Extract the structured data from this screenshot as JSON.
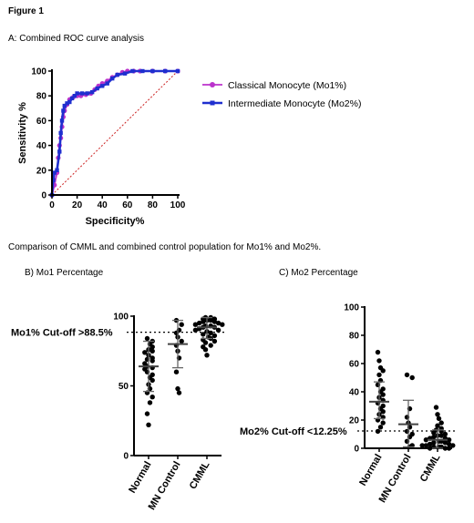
{
  "figure_title": "Figure 1",
  "panel_a_title": "A: Combined ROC curve analysis",
  "comparison_text": "Comparison of CMML and combined control population for Mo1% and Mo2%.",
  "panel_b_title": "B) Mo1 Percentage",
  "panel_c_title": "C) Mo2 Percentage",
  "colors": {
    "mo1": "#bb33cc",
    "mo2": "#1f2fcf",
    "reference": "#cc2222",
    "points": "#000000"
  },
  "chart_data": [
    {
      "type": "line",
      "title": "",
      "xlabel": "Specificity%",
      "ylabel": "Sensitivity %",
      "xlim": [
        0,
        100
      ],
      "ylim": [
        0,
        100
      ],
      "x_ticks": [
        "0",
        "20",
        "40",
        "60",
        "80",
        "100"
      ],
      "y_ticks": [
        "0",
        "20",
        "40",
        "60",
        "80",
        "100"
      ],
      "legend_position": "right",
      "series": [
        {
          "name": "Classical Monocyte (Mo1%)",
          "marker": "circle",
          "x": [
            0,
            2,
            4,
            5,
            6,
            7,
            8,
            9,
            10,
            12,
            14,
            17,
            20,
            23,
            27,
            31,
            34,
            37,
            40,
            44,
            48,
            52,
            56,
            60,
            65,
            70,
            80,
            90,
            100
          ],
          "y": [
            0,
            8,
            18,
            30,
            40,
            46,
            55,
            63,
            68,
            73,
            77,
            79,
            80,
            80,
            81,
            82,
            85,
            88,
            90,
            92,
            95,
            97,
            99,
            100,
            100,
            100,
            100,
            100,
            100
          ]
        },
        {
          "name": "Intermediate Monocyte (Mo2%)",
          "marker": "square",
          "x": [
            0,
            1,
            2,
            4,
            6,
            7,
            8,
            9,
            10,
            12,
            14,
            16,
            18,
            20,
            24,
            28,
            32,
            36,
            40,
            44,
            48,
            52,
            58,
            64,
            72,
            80,
            90,
            100
          ],
          "y": [
            0,
            12,
            18,
            20,
            35,
            50,
            60,
            68,
            72,
            74,
            75,
            78,
            80,
            82,
            82,
            82,
            83,
            86,
            88,
            90,
            94,
            97,
            98,
            100,
            100,
            100,
            100,
            100
          ]
        },
        {
          "name": "",
          "style": "dotted",
          "x": [
            0,
            100
          ],
          "y": [
            0,
            100
          ]
        }
      ]
    },
    {
      "type": "scatter",
      "title": "B) Mo1 Percentage",
      "xlabel": "",
      "ylabel": "",
      "ylim": [
        0,
        100
      ],
      "y_ticks": [
        "0",
        "50",
        "100"
      ],
      "categories": [
        "Normal",
        "MN Control",
        "CMML"
      ],
      "cutoff": {
        "label": "Mo1% Cut-off >88.5%",
        "value": 88.5
      },
      "groups": [
        {
          "name": "Normal",
          "mean": 64,
          "sd_low": 46,
          "sd_high": 82,
          "values": [
            84,
            82,
            80,
            78,
            76,
            75,
            74,
            72,
            70,
            69,
            68,
            66,
            64,
            63,
            62,
            60,
            58,
            56,
            54,
            51,
            48,
            45,
            42,
            38,
            30,
            22
          ]
        },
        {
          "name": "MN Control",
          "mean": 80,
          "sd_low": 63,
          "sd_high": 97,
          "values": [
            97,
            94,
            90,
            88,
            85,
            82,
            79,
            75,
            70,
            60,
            48,
            45
          ]
        },
        {
          "name": "CMML",
          "mean": 92,
          "sd_low": 84,
          "sd_high": 99,
          "values": [
            99,
            99,
            98,
            98,
            97,
            97,
            96,
            96,
            95,
            95,
            94,
            94,
            93,
            93,
            92,
            92,
            91,
            90,
            90,
            89,
            88,
            87,
            86,
            85,
            84,
            83,
            82,
            81,
            79,
            78,
            76,
            72
          ]
        }
      ]
    },
    {
      "type": "scatter",
      "title": "C) Mo2 Percentage",
      "xlabel": "",
      "ylabel": "",
      "ylim": [
        0,
        100
      ],
      "y_ticks": [
        "0",
        "20",
        "40",
        "60",
        "80",
        "100"
      ],
      "categories": [
        "Normal",
        "MN Control",
        "CMML"
      ],
      "cutoff": {
        "label": "Mo2% Cut-off <12.25%",
        "value": 12.25
      },
      "groups": [
        {
          "name": "Normal",
          "mean": 33,
          "sd_low": 21,
          "sd_high": 47,
          "values": [
            68,
            62,
            57,
            55,
            52,
            48,
            45,
            42,
            40,
            38,
            36,
            34,
            32,
            30,
            28,
            26,
            24,
            22,
            20,
            18,
            15,
            12
          ]
        },
        {
          "name": "MN Control",
          "mean": 17,
          "sd_low": 1,
          "sd_high": 34,
          "values": [
            52,
            50,
            28,
            22,
            18,
            15,
            12,
            10,
            8,
            5,
            2,
            1
          ]
        },
        {
          "name": "CMML",
          "mean": 6,
          "sd_low": 0,
          "sd_high": 13,
          "values": [
            29,
            24,
            21,
            18,
            16,
            14,
            13,
            12,
            11,
            10,
            9,
            9,
            8,
            7,
            7,
            6,
            6,
            5,
            5,
            4,
            4,
            3,
            3,
            2,
            2,
            2,
            1,
            1,
            1,
            0,
            0,
            0
          ]
        }
      ]
    }
  ]
}
